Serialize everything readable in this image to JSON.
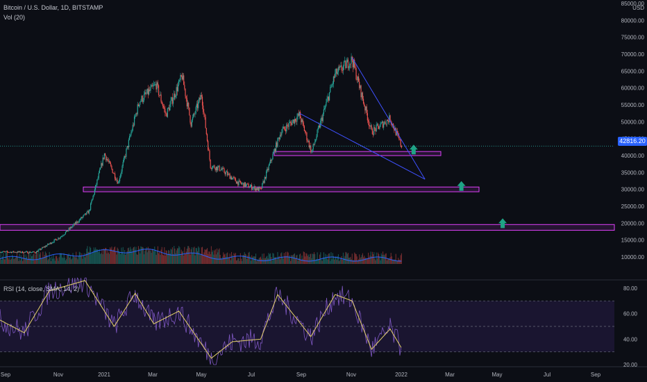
{
  "header": {
    "symbol": "Bitcoin / U.S. Dollar, 1D, BITSTAMP",
    "volume_label": "Vol (20)",
    "rsi_label": "RSI (14, close, SMA, 14, 2)"
  },
  "price_axis": {
    "currency": "USD",
    "ticks": [
      "85000.00",
      "80000.00",
      "75000.00",
      "70000.00",
      "65000.00",
      "60000.00",
      "55000.00",
      "50000.00",
      "45000.00",
      "40000.00",
      "35000.00",
      "30000.00",
      "25000.00",
      "20000.00",
      "15000.00",
      "10000.00"
    ]
  },
  "rsi_axis": {
    "ticks": [
      "80.00",
      "60.00",
      "40.00",
      "20.00"
    ]
  },
  "time_axis": {
    "ticks": [
      "Sep",
      "Nov",
      "2021",
      "Mar",
      "May",
      "Jul",
      "Sep",
      "Nov",
      "2022",
      "Mar",
      "May",
      "Jul",
      "Sep"
    ]
  },
  "last_price": "42816.20",
  "colors": {
    "background": "#0c0e15",
    "up": "#26a69a",
    "down": "#ef5350",
    "trendline": "#3f51ff",
    "zone": "#e040fb",
    "arrow": "#1fa386",
    "rsi_line": "#7e57c2",
    "rsi_ma": "#e6d36b",
    "volume_ma": "#2962ff"
  },
  "chart_data": {
    "type": "candlestick",
    "title": "Bitcoin / U.S. Dollar, 1D, BITSTAMP",
    "interval": "1D",
    "x_range": [
      "2020-09-01",
      "2022-09-30"
    ],
    "y_range": [
      7000,
      85000
    ],
    "approx_close_path": [
      {
        "date": "2020-09-01",
        "price": 11500
      },
      {
        "date": "2020-10-15",
        "price": 11400
      },
      {
        "date": "2020-11-15",
        "price": 16000
      },
      {
        "date": "2020-12-20",
        "price": 23500
      },
      {
        "date": "2021-01-08",
        "price": 40500
      },
      {
        "date": "2021-01-25",
        "price": 32000
      },
      {
        "date": "2021-02-20",
        "price": 56000
      },
      {
        "date": "2021-03-13",
        "price": 61000
      },
      {
        "date": "2021-03-25",
        "price": 52000
      },
      {
        "date": "2021-04-14",
        "price": 63500
      },
      {
        "date": "2021-04-25",
        "price": 49500
      },
      {
        "date": "2021-05-08",
        "price": 58000
      },
      {
        "date": "2021-05-19",
        "price": 37000
      },
      {
        "date": "2021-06-01",
        "price": 36000
      },
      {
        "date": "2021-06-22",
        "price": 32000
      },
      {
        "date": "2021-07-20",
        "price": 29800
      },
      {
        "date": "2021-08-14",
        "price": 47000
      },
      {
        "date": "2021-09-06",
        "price": 52000
      },
      {
        "date": "2021-09-21",
        "price": 41000
      },
      {
        "date": "2021-10-20",
        "price": 64000
      },
      {
        "date": "2021-11-10",
        "price": 68500
      },
      {
        "date": "2021-12-04",
        "price": 47000
      },
      {
        "date": "2021-12-27",
        "price": 51000
      },
      {
        "date": "2022-01-10",
        "price": 42816
      }
    ],
    "support_zones": [
      [
        40000,
        41200
      ],
      [
        29300,
        30700
      ],
      [
        17900,
        19600
      ]
    ],
    "trendlines": [
      {
        "from": {
          "date": "2021-11-10",
          "price": 69000
        },
        "to": {
          "date": "2022-02-08",
          "price": 33000
        }
      },
      {
        "from": {
          "date": "2021-09-06",
          "price": 52500
        },
        "to": {
          "date": "2022-02-08",
          "price": 33000
        }
      }
    ],
    "targets": [
      {
        "date": "2022-01-25",
        "price": 41800
      },
      {
        "date": "2022-03-25",
        "price": 31000
      },
      {
        "date": "2022-05-15",
        "price": 20000
      }
    ],
    "last_price": 42816.2,
    "rsi": {
      "label": "RSI (14, close, SMA, 14, 2)",
      "y_range": [
        20,
        85
      ],
      "upper_band": 70,
      "lower_band": 30,
      "approx_values": [
        {
          "date": "2020-09-01",
          "value": 55
        },
        {
          "date": "2020-10-01",
          "value": 45
        },
        {
          "date": "2020-11-01",
          "value": 78
        },
        {
          "date": "2020-12-15",
          "value": 86
        },
        {
          "date": "2021-01-20",
          "value": 50
        },
        {
          "date": "2021-02-15",
          "value": 76
        },
        {
          "date": "2021-03-10",
          "value": 52
        },
        {
          "date": "2021-04-10",
          "value": 62
        },
        {
          "date": "2021-05-20",
          "value": 25
        },
        {
          "date": "2021-06-15",
          "value": 38
        },
        {
          "date": "2021-07-20",
          "value": 40
        },
        {
          "date": "2021-08-10",
          "value": 75
        },
        {
          "date": "2021-09-20",
          "value": 42
        },
        {
          "date": "2021-10-20",
          "value": 75
        },
        {
          "date": "2021-11-10",
          "value": 70
        },
        {
          "date": "2021-12-04",
          "value": 32
        },
        {
          "date": "2021-12-27",
          "value": 48
        },
        {
          "date": "2022-01-10",
          "value": 33
        }
      ]
    }
  }
}
